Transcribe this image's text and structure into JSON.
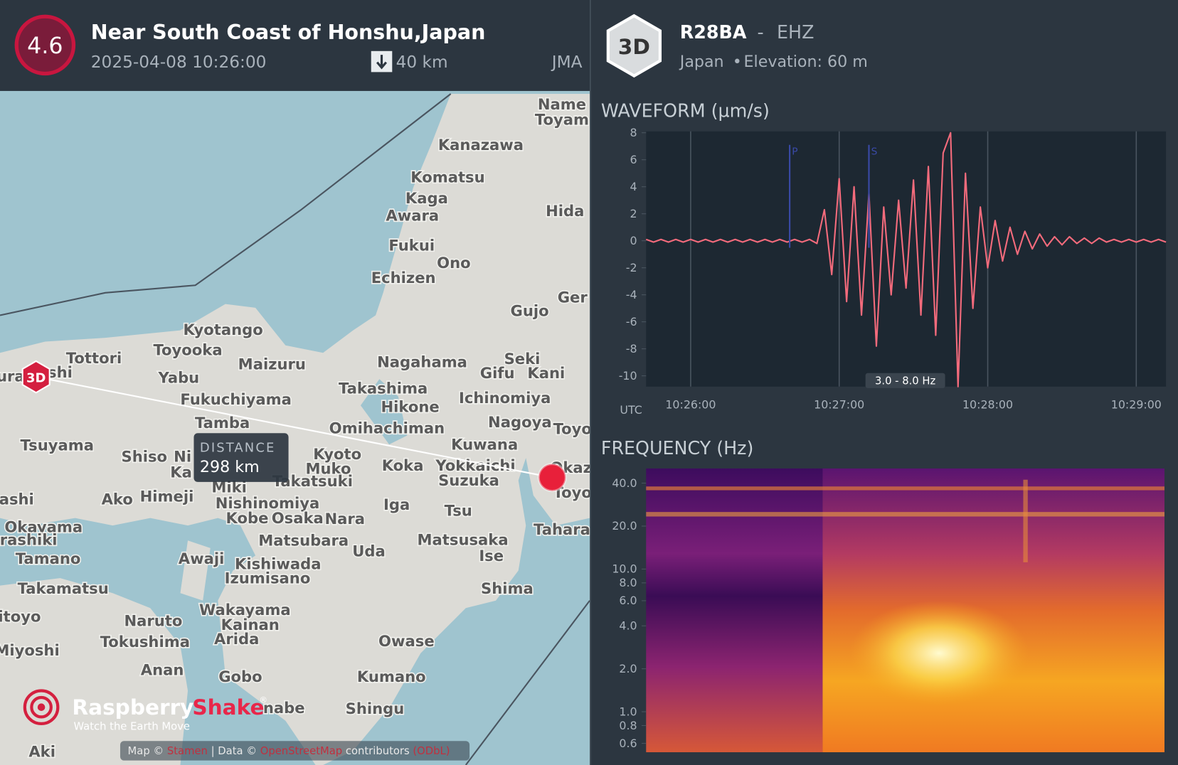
{
  "header": {
    "magnitude": "4.6",
    "title": "Near South Coast of Honshu,Japan",
    "datetime": "2025-04-08 10:26:00",
    "depth": "40 km",
    "agency": "JMA"
  },
  "station": {
    "badge": "3D",
    "code": "R28BA",
    "separator": "-",
    "channel": "EHZ",
    "country": "Japan",
    "bullet": "•",
    "elevation": "Elevation: 60 m"
  },
  "map": {
    "places": [
      "Name",
      "Toyam",
      "Kanazawa",
      "Komatsu",
      "Kaga",
      "Awara",
      "Hida",
      "Fukui",
      "Ono",
      "Echizen",
      "Ger",
      "Gujo",
      "Kyotango",
      "Toyooka",
      "Tottori",
      "ura",
      "shi",
      "Maizuru",
      "Nagahama",
      "Seki",
      "Gifu",
      "Kani",
      "Yabu",
      "Takashima",
      "Fukuchiyama",
      "Ichinomiya",
      "Hikone",
      "Nagoya",
      "Toyo",
      "Tamba",
      "Omihachiman",
      "Tsuyama",
      "Kuwana",
      "Shiso",
      "Ni",
      "Ka",
      "Kyoto",
      "Muko",
      "Takatsuki",
      "Koka",
      "Yokkaichi",
      "Suzuka",
      "Okaz",
      "Toyo",
      "Miki",
      "ashi",
      "Ako",
      "Himeji",
      "Nishinomiya",
      "Iga",
      "Tsu",
      "Kobe",
      "Osaka",
      "Nara",
      "Okayama",
      "rashiki",
      "Tahara",
      "Matsubara",
      "Matsusaka",
      "Uda",
      "Tamano",
      "Awaji",
      "Kishiwada",
      "Ise",
      "Izumisano",
      "Takamatsu",
      "Shima",
      "Wakayama",
      "itoyo",
      "Naruto",
      "Kainan",
      "Arida",
      "Tokushima",
      "Owase",
      "Miyoshi",
      "Anan",
      "Gobo",
      "Kumano",
      "nabe",
      "Shingu",
      "Aki"
    ],
    "station_marker": "3D",
    "distance_label": "DISTANCE",
    "distance": "298 km",
    "logo": {
      "brand": "Raspberry",
      "brand_accent": "Shake",
      "mark": "®",
      "tagline": "Watch the Earth Move"
    },
    "attribution": [
      "Map © ",
      "Stamen",
      " | Data © ",
      "OpenStreetMap",
      " contributors ",
      "(ODbL)"
    ]
  },
  "chart_data": [
    {
      "type": "line",
      "title": "WAVEFORM (µm/s)",
      "x_label": "UTC",
      "filter_label": "3.0 - 8.0 Hz",
      "color": "#f46b7c",
      "grid": "x",
      "xlim": [
        "10:25:42",
        "10:29:12"
      ],
      "xticks": [
        "10:26:00",
        "10:27:00",
        "10:28:00",
        "10:29:00"
      ],
      "ylim": [
        -10.8,
        8.1
      ],
      "yticks": [
        -10,
        -8,
        -6,
        -4,
        -2,
        0,
        2,
        4,
        6,
        8
      ],
      "annotations": [
        {
          "x": "10:26:40",
          "label": "P"
        },
        {
          "x": "10:27:12",
          "label": "S"
        }
      ],
      "x": [
        "10:25:42",
        "10:25:45",
        "10:25:48",
        "10:25:51",
        "10:25:54",
        "10:25:57",
        "10:26:00",
        "10:26:03",
        "10:26:06",
        "10:26:09",
        "10:26:12",
        "10:26:15",
        "10:26:18",
        "10:26:21",
        "10:26:24",
        "10:26:27",
        "10:26:30",
        "10:26:33",
        "10:26:36",
        "10:26:39",
        "10:26:42",
        "10:26:45",
        "10:26:48",
        "10:26:51",
        "10:26:54",
        "10:26:57",
        "10:27:00",
        "10:27:03",
        "10:27:06",
        "10:27:09",
        "10:27:12",
        "10:27:15",
        "10:27:18",
        "10:27:21",
        "10:27:24",
        "10:27:27",
        "10:27:30",
        "10:27:33",
        "10:27:36",
        "10:27:39",
        "10:27:42",
        "10:27:45",
        "10:27:48",
        "10:27:51",
        "10:27:54",
        "10:27:57",
        "10:28:00",
        "10:28:03",
        "10:28:06",
        "10:28:09",
        "10:28:12",
        "10:28:15",
        "10:28:18",
        "10:28:21",
        "10:28:24",
        "10:28:27",
        "10:28:30",
        "10:28:33",
        "10:28:36",
        "10:28:39",
        "10:28:42",
        "10:28:45",
        "10:28:48",
        "10:28:51",
        "10:28:54",
        "10:28:57",
        "10:29:00",
        "10:29:03",
        "10:29:06",
        "10:29:09",
        "10:29:12"
      ],
      "values": [
        0.1,
        -0.1,
        0.1,
        -0.1,
        0.1,
        -0.1,
        0.1,
        -0.1,
        0.1,
        -0.1,
        0.1,
        -0.1,
        0.1,
        -0.1,
        0.1,
        -0.1,
        0.1,
        -0.1,
        0.1,
        -0.1,
        0.1,
        -0.1,
        0.1,
        -0.2,
        2.3,
        -2.5,
        4.6,
        -4.5,
        4.0,
        -5.5,
        3.5,
        -7.8,
        2.5,
        -4.0,
        3.0,
        -3.5,
        4.5,
        -5.5,
        5.5,
        -7.0,
        6.5,
        8.0,
        -10.8,
        5.0,
        -5.0,
        2.5,
        -2.0,
        1.5,
        -1.5,
        1.0,
        -1.0,
        0.7,
        -0.6,
        0.5,
        -0.4,
        0.3,
        -0.3,
        0.3,
        -0.2,
        0.2,
        -0.2,
        0.2,
        -0.1,
        0.1,
        -0.1,
        0.1,
        -0.1,
        0.1,
        -0.1,
        0.1,
        -0.1
      ]
    },
    {
      "type": "spectrogram",
      "title": "FREQUENCY (Hz)",
      "log_scale": true,
      "ylim": [
        0.52,
        50.7
      ],
      "yticks": [
        {
          "value": 40,
          "label": "40.0"
        },
        {
          "value": 20,
          "label": "20.0"
        },
        {
          "value": 10,
          "label": "10.0"
        },
        {
          "value": 8,
          "label": "8.0"
        },
        {
          "value": 6,
          "label": "6.0"
        },
        {
          "value": 4,
          "label": "4.0"
        },
        {
          "value": 2,
          "label": "2.0"
        },
        {
          "value": 1,
          "label": "1.0"
        },
        {
          "value": 0.8,
          "label": "0.8"
        },
        {
          "value": 0.6,
          "label": "0.6"
        }
      ]
    }
  ]
}
